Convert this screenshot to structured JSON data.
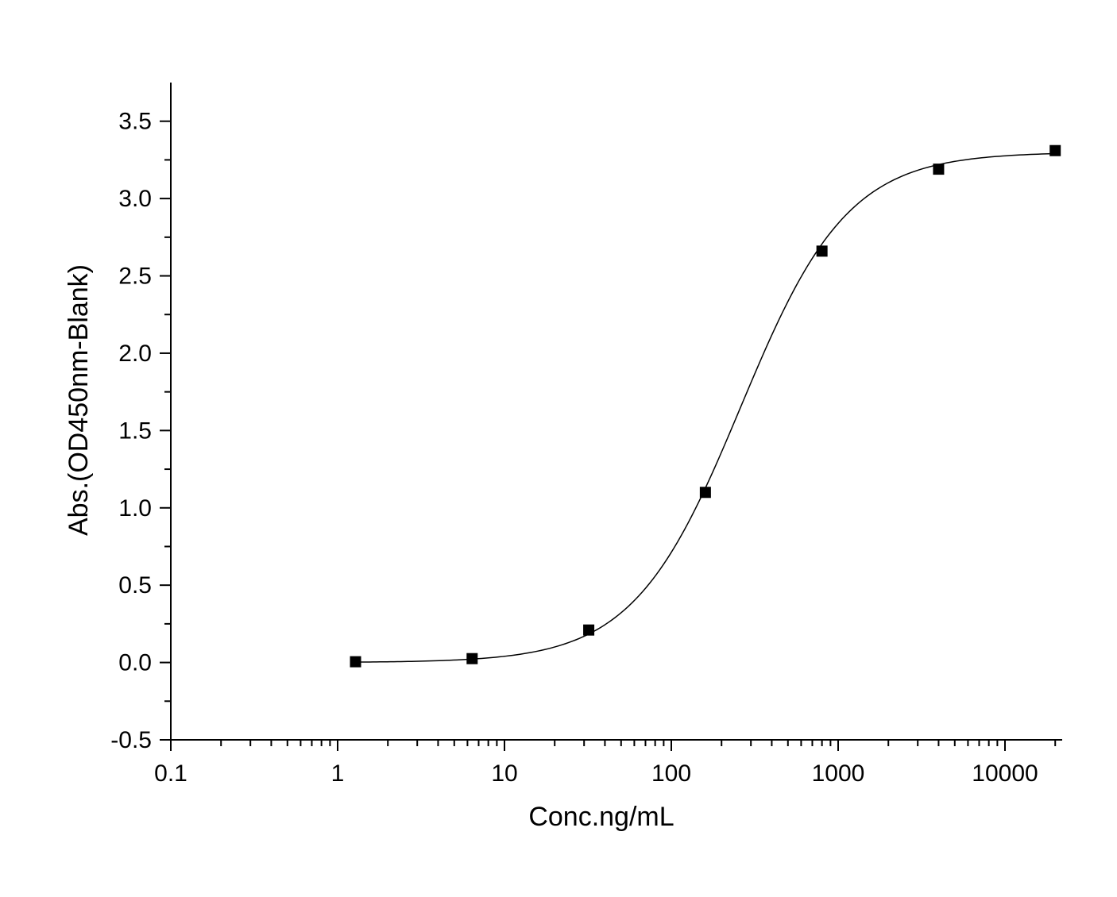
{
  "chart_data": {
    "type": "scatter",
    "title": "",
    "xlabel": "Conc.ng/mL",
    "ylabel": "Abs.(OD450nm-Blank)",
    "x_scale": "log",
    "xlim": [
      0.1,
      22000
    ],
    "ylim": [
      -0.5,
      3.75
    ],
    "x_ticks": [
      {
        "value": 0.1,
        "label": "0.1"
      },
      {
        "value": 1,
        "label": "1"
      },
      {
        "value": 10,
        "label": "10"
      },
      {
        "value": 100,
        "label": "100"
      },
      {
        "value": 1000,
        "label": "1000"
      },
      {
        "value": 10000,
        "label": "10000"
      }
    ],
    "y_ticks": [
      {
        "value": -0.5,
        "label": "-0.5"
      },
      {
        "value": 0.0,
        "label": "0.0"
      },
      {
        "value": 0.5,
        "label": "0.5"
      },
      {
        "value": 1.0,
        "label": "1.0"
      },
      {
        "value": 1.5,
        "label": "1.5"
      },
      {
        "value": 2.0,
        "label": "2.0"
      },
      {
        "value": 2.5,
        "label": "2.5"
      },
      {
        "value": 3.0,
        "label": "3.0"
      },
      {
        "value": 3.5,
        "label": "3.5"
      }
    ],
    "grid": false,
    "legend": "none",
    "marker": "square",
    "marker_color": "#000000",
    "line_color": "#000000",
    "series": [
      {
        "x": [
          1.28,
          6.4,
          32,
          160,
          800,
          4000,
          20000
        ],
        "y": [
          0.005,
          0.025,
          0.21,
          1.1,
          2.66,
          3.19,
          3.31
        ]
      }
    ],
    "fit_curve": {
      "model": "4PL",
      "bottom": 0.0,
      "top": 3.3,
      "ec50": 260,
      "hill": 1.35
    }
  }
}
